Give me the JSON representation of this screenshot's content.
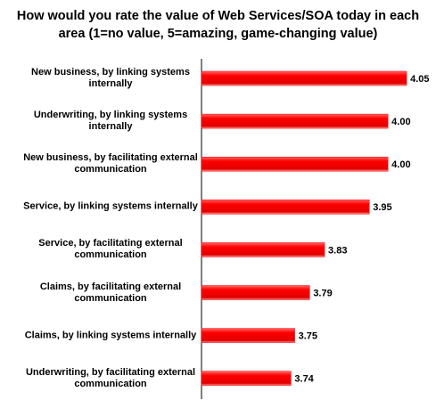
{
  "chart_data": {
    "type": "barh",
    "title": "How would you rate the value of Web Services/SOA today in each area (1=no value, 5=amazing, game-changing value)",
    "categories": [
      "New business, by linking systems internally",
      "Underwriting, by linking systems internally",
      "New business, by facilitating external communication",
      "Service, by linking systems internally",
      "Service, by facilitating external communication",
      "Claims, by facilitating external communication",
      "Claims, by linking systems internally",
      "Underwriting, by facilitating external communication"
    ],
    "values": [
      4.05,
      4.0,
      4.0,
      3.95,
      3.83,
      3.79,
      3.75,
      3.74
    ],
    "value_labels": [
      "4.05",
      "4.00",
      "4.00",
      "3.95",
      "3.83",
      "3.79",
      "3.75",
      "3.74"
    ],
    "color": "#ff0000",
    "xlim": [
      3.5,
      4.1
    ]
  }
}
